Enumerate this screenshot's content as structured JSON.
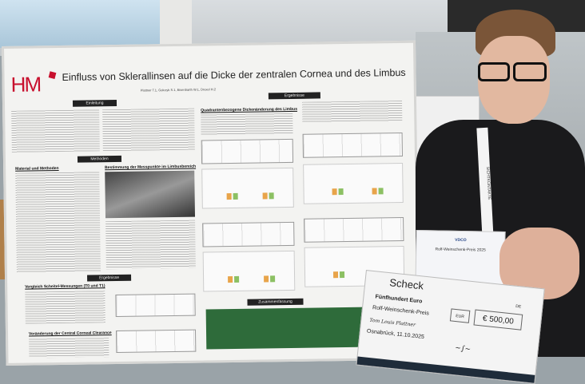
{
  "poster": {
    "logo": "HM",
    "title": "Einfluss von Sklerallinsen auf die Dicke der zentralen Cornea und des Limbus",
    "authors": "Plattner T.1, Golczyk S.1, Eisenbarth W.1, Drexel H.2",
    "sections": {
      "einleitung": "Einleitung",
      "methoden": "Methoden",
      "material": "Material und Methoden",
      "messpunkte": "Bestimmung der Messpunkte im Limbusbereich",
      "ergebnisse": "Ergebnisse",
      "vergleich": "Vergleich Scheitel-Messungen (T0 und T1)",
      "clearance": "Veränderung der Central Corneal Clearance",
      "quadranten": "Quadrantenbezogene Dickenänderung des Limbus",
      "zusammenfassung": "Zusammenfassung"
    }
  },
  "lanyard": "SICHTKONTAKTE",
  "certificate": {
    "logo": "VDCO",
    "prize": "Rolf-Weinschenk-Preis 2025"
  },
  "cheque": {
    "title": "Scheck",
    "amount_words": "Fünfhundert Euro",
    "purpose": "Rolf-Weinschenk-Preis",
    "recipient": "Tom Louis Plattner",
    "place_date": "Osnabrück, 11.10.2025",
    "currency": "EUR",
    "amount": "€ 500,00",
    "country": "DE"
  }
}
